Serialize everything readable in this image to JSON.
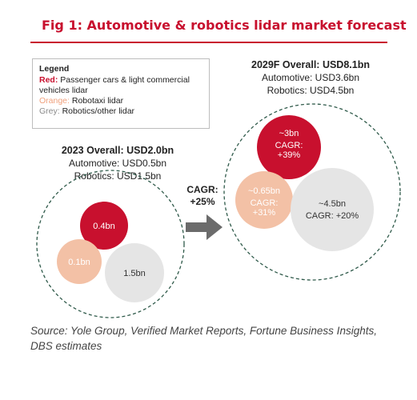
{
  "title": "Fig 1: Automotive & robotics lidar market forecast",
  "legend": {
    "title": "Legend",
    "red_key": "Red:",
    "red_text": " Passenger cars & light commercial vehicles lidar",
    "orange_key": "Orange:",
    "orange_text": " Robotaxi lidar",
    "grey_key": "Grey:",
    "grey_text": " Robotics/other lidar"
  },
  "summary_2023": {
    "heading": "2023 Overall: USD2.0bn",
    "automotive": "Automotive: USD0.5bn",
    "robotics": "Robotics: USD1.5bn"
  },
  "summary_2029": {
    "heading": "2029F Overall: USD8.1bn",
    "automotive": "Automotive: USD3.6bn",
    "robotics": "Robotics: USD4.5bn"
  },
  "arrow": {
    "line1": "CAGR:",
    "line2": "+25%"
  },
  "source": "Source: Yole Group, Verified Market Reports, Fortune Business Insights, DBS estimates",
  "colors": {
    "red": "#c8102e",
    "orange": "#f3c1a6",
    "grey": "#e5e5e5",
    "arrow": "#6b6b6b"
  },
  "chart_data": {
    "type": "bubble",
    "groups": [
      {
        "year": "2023",
        "bubbles": [
          {
            "segment": "Passenger cars & light commercial vehicles lidar",
            "color": "red",
            "value": 0.4,
            "label": "0.4bn",
            "cagr_label": ""
          },
          {
            "segment": "Robotaxi lidar",
            "color": "orange",
            "value": 0.1,
            "label": "0.1bn",
            "cagr_label": ""
          },
          {
            "segment": "Robotics/other lidar",
            "color": "grey",
            "value": 1.5,
            "label": "1.5bn",
            "cagr_label": ""
          }
        ]
      },
      {
        "year": "2029F",
        "bubbles": [
          {
            "segment": "Passenger cars & light commercial vehicles lidar",
            "color": "red",
            "value": 3.0,
            "label": "~3bn",
            "cagr_label": "CAGR:\n+39%"
          },
          {
            "segment": "Robotaxi lidar",
            "color": "orange",
            "value": 0.65,
            "label": "~0.65bn",
            "cagr_label": "CAGR:\n+31%"
          },
          {
            "segment": "Robotics/other lidar",
            "color": "grey",
            "value": 4.5,
            "label": "~4.5bn",
            "cagr_label": "CAGR: +20%"
          }
        ]
      }
    ]
  }
}
